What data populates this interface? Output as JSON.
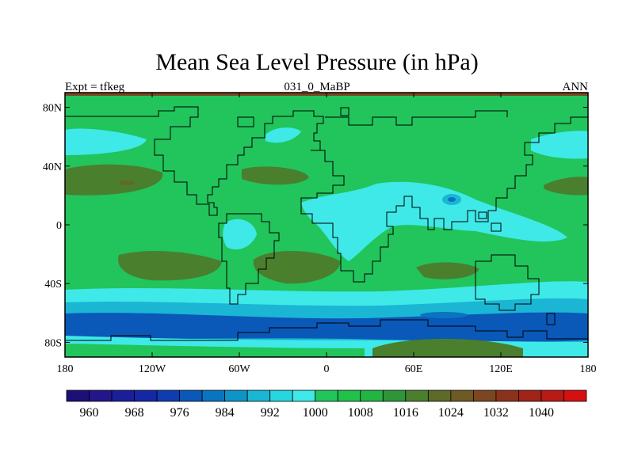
{
  "title": "Mean Sea Level Pressure (in hPa)",
  "left_string": "Expt = tfkeg",
  "center_string": "031_0_MaBP",
  "right_string": "ANN",
  "chart_data": {
    "type": "heatmap",
    "title": "Mean Sea Level Pressure (in hPa)",
    "x_ticks": [
      "180",
      "120W",
      "60W",
      "0",
      "60E",
      "120E",
      "180"
    ],
    "y_ticks": [
      "80N",
      "40N",
      "0",
      "40S",
      "80S"
    ],
    "xlim": [
      -180,
      180
    ],
    "ylim": [
      -90,
      90
    ],
    "colorbar": {
      "levels": [
        956,
        960,
        964,
        968,
        972,
        976,
        980,
        984,
        988,
        992,
        996,
        1000,
        1004,
        1008,
        1012,
        1016,
        1020,
        1024,
        1028,
        1032,
        1036,
        1040,
        1044
      ],
      "labels": [
        "960",
        "968",
        "976",
        "984",
        "992",
        "1000",
        "1008",
        "1016",
        "1024",
        "1032",
        "1040"
      ],
      "colors": [
        "#1d0f78",
        "#22168a",
        "#1a1e99",
        "#1428a6",
        "#0f3cb0",
        "#0a58b8",
        "#0a74c0",
        "#0f94c8",
        "#1ab6d4",
        "#28d6e0",
        "#3ee9e8",
        "#22c45c",
        "#20c24a",
        "#24b444",
        "#2e9638",
        "#4a7f2e",
        "#5e6a28",
        "#6e5a24",
        "#7c4620",
        "#8a321c",
        "#a02418",
        "#b81a16",
        "#d41010"
      ]
    },
    "regions": [
      {
        "name": "low-southern-ocean",
        "value": 984
      },
      {
        "name": "low-southern-band",
        "value": 992
      },
      {
        "name": "high-subtropical-south",
        "value": 1016
      },
      {
        "name": "high-subtropical-north",
        "value": 1016
      },
      {
        "name": "low-asia-monsoon",
        "value": 996
      },
      {
        "name": "background",
        "value": 1008
      }
    ]
  }
}
